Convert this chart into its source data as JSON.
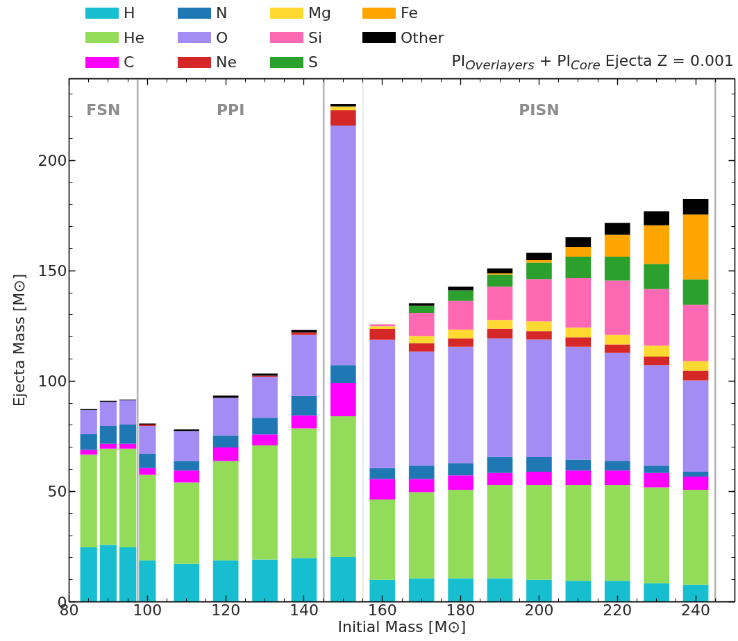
{
  "chart_data": {
    "type": "bar",
    "stacked": true,
    "title": "PI$_{Overlayers}$ + PI$_{Core}$ Ejecta Z = 0.001",
    "xlabel": "Initial Mass [M⊙]",
    "ylabel": "Ejecta Mass [M⊙]",
    "x": [
      85,
      90,
      95,
      100,
      110,
      120,
      130,
      140,
      150,
      160,
      170,
      180,
      190,
      200,
      210,
      220,
      230,
      240
    ],
    "series": [
      {
        "name": "H",
        "color": "#17becf",
        "values": [
          24.7,
          25.8,
          24.7,
          18.8,
          17.2,
          18.8,
          19.2,
          19.8,
          20.3,
          10.0,
          10.6,
          10.6,
          10.6,
          10.0,
          9.5,
          9.5,
          8.4,
          7.8
        ]
      },
      {
        "name": "He",
        "color": "#92dc5a",
        "values": [
          41.9,
          43.6,
          44.7,
          38.7,
          36.9,
          45.0,
          51.7,
          58.8,
          63.8,
          36.4,
          39.1,
          40.2,
          42.4,
          43.0,
          43.5,
          43.5,
          43.5,
          43.0
        ]
      },
      {
        "name": "C",
        "color": "#ff00ff",
        "values": [
          2.2,
          2.2,
          2.2,
          3.1,
          5.4,
          6.1,
          4.9,
          5.9,
          15.1,
          9.2,
          5.9,
          6.5,
          5.4,
          5.9,
          6.5,
          6.5,
          6.5,
          5.9
        ]
      },
      {
        "name": "N",
        "color": "#1f77b4",
        "values": [
          7.1,
          8.1,
          8.7,
          6.6,
          4.3,
          5.5,
          7.6,
          8.8,
          8.1,
          5.0,
          6.1,
          5.5,
          7.2,
          6.6,
          4.9,
          4.4,
          3.3,
          2.2
        ]
      },
      {
        "name": "O",
        "color": "#a38cf4",
        "values": [
          11.0,
          10.9,
          11.0,
          12.5,
          13.6,
          17.0,
          18.5,
          27.6,
          108.5,
          58.1,
          51.7,
          52.8,
          53.8,
          53.3,
          51.2,
          48.9,
          45.6,
          41.4
        ]
      },
      {
        "name": "Ne",
        "color": "#d62728",
        "values": [
          null,
          null,
          null,
          0.6,
          null,
          null,
          0.6,
          1.1,
          7.0,
          5.0,
          3.8,
          3.8,
          4.4,
          3.9,
          4.2,
          3.8,
          3.8,
          4.4
        ]
      },
      {
        "name": "Mg",
        "color": "#ffd92f",
        "values": [
          null,
          null,
          null,
          null,
          null,
          null,
          null,
          null,
          1.6,
          1.2,
          3.3,
          3.9,
          3.9,
          4.4,
          4.4,
          4.3,
          5.0,
          4.4
        ]
      },
      {
        "name": "Si",
        "color": "#ff69b4",
        "values": [
          null,
          null,
          null,
          null,
          null,
          null,
          null,
          null,
          null,
          0.8,
          10.4,
          13.0,
          15.1,
          19.1,
          22.4,
          24.6,
          25.6,
          25.4
        ]
      },
      {
        "name": "S",
        "color": "#2ca02c",
        "values": [
          null,
          null,
          null,
          null,
          null,
          null,
          null,
          null,
          null,
          null,
          3.2,
          4.8,
          5.5,
          7.5,
          9.8,
          10.9,
          11.4,
          11.6
        ]
      },
      {
        "name": "Fe",
        "color": "#ffa500",
        "values": [
          null,
          null,
          null,
          null,
          null,
          null,
          null,
          null,
          null,
          null,
          null,
          null,
          0.5,
          1.1,
          4.4,
          9.9,
          17.5,
          29.4
        ]
      },
      {
        "name": "Other",
        "color": "#000000",
        "values": [
          0.4,
          0.5,
          0.3,
          0.5,
          0.7,
          1.0,
          0.9,
          1.1,
          1.1,
          null,
          1.1,
          1.7,
          2.2,
          3.3,
          4.4,
          5.4,
          6.4,
          7.0
        ]
      }
    ],
    "xlim": [
      80,
      250
    ],
    "xticks": [
      80,
      100,
      120,
      140,
      160,
      180,
      200,
      220,
      240
    ],
    "ylim": [
      0,
      237
    ],
    "yticks": [
      0,
      50,
      100,
      150,
      200
    ],
    "ref_lines": [
      {
        "axis": "x",
        "value": 97.5,
        "color": "#b3b3b3"
      },
      {
        "axis": "x",
        "value": 145,
        "color": "#b3b3b3"
      },
      {
        "axis": "x",
        "value": 155,
        "color": "#ececec"
      },
      {
        "axis": "x",
        "value": 245,
        "color": "#b3b3b3"
      }
    ],
    "annotations": [
      "FSN",
      "PPI",
      "PISN"
    ],
    "grid": false,
    "legend": "top left"
  }
}
